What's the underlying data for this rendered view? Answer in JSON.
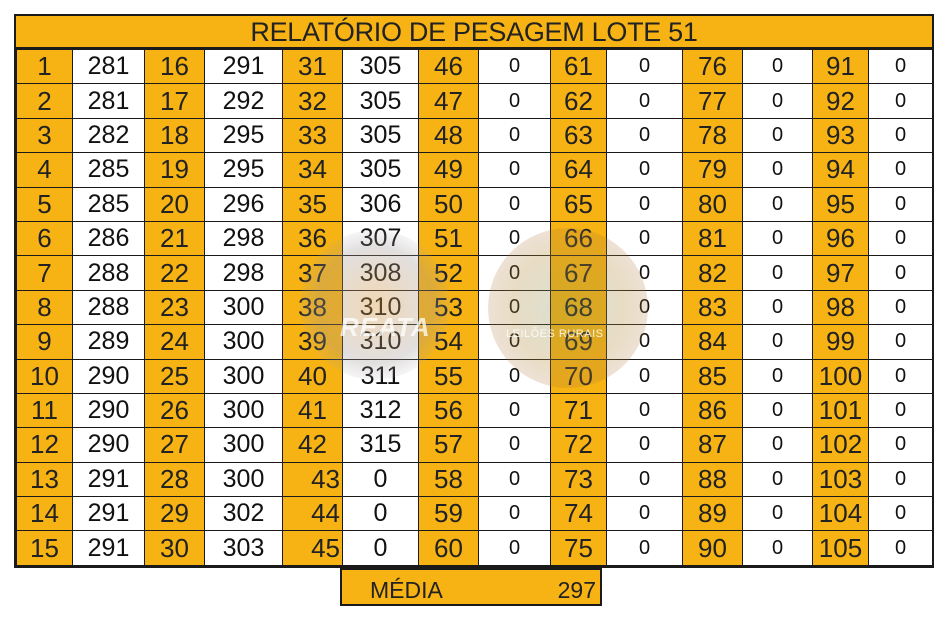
{
  "report": {
    "title": "RELATÓRIO DE PESAGEM LOTE  51",
    "columns": [
      {
        "numbers": [
          "1",
          "2",
          "3",
          "4",
          "5",
          "6",
          "7",
          "8",
          "9",
          "10",
          "11",
          "12",
          "13",
          "14",
          "15"
        ],
        "weights": [
          "281",
          "281",
          "282",
          "285",
          "285",
          "286",
          "288",
          "288",
          "289",
          "290",
          "290",
          "290",
          "291",
          "291",
          "291"
        ]
      },
      {
        "numbers": [
          "16",
          "17",
          "18",
          "19",
          "20",
          "21",
          "22",
          "23",
          "24",
          "25",
          "26",
          "27",
          "28",
          "29",
          "30"
        ],
        "weights": [
          "291",
          "292",
          "295",
          "295",
          "296",
          "298",
          "298",
          "300",
          "300",
          "300",
          "300",
          "300",
          "300",
          "302",
          "303"
        ]
      },
      {
        "numbers": [
          "31",
          "32",
          "33",
          "34",
          "35",
          "36",
          "37",
          "38",
          "39",
          "40",
          "41",
          "42",
          "43",
          "44",
          "45"
        ],
        "weights": [
          "305",
          "305",
          "305",
          "305",
          "306",
          "307",
          "308",
          "310",
          "310",
          "311",
          "312",
          "315",
          "0",
          "0",
          "0"
        ]
      },
      {
        "numbers": [
          "46",
          "47",
          "48",
          "49",
          "50",
          "51",
          "52",
          "53",
          "54",
          "55",
          "56",
          "57",
          "58",
          "59",
          "60"
        ],
        "weights": [
          "0",
          "0",
          "0",
          "0",
          "0",
          "0",
          "0",
          "0",
          "0",
          "0",
          "0",
          "0",
          "0",
          "0",
          "0"
        ]
      },
      {
        "numbers": [
          "61",
          "62",
          "63",
          "64",
          "65",
          "66",
          "67",
          "68",
          "69",
          "70",
          "71",
          "72",
          "73",
          "74",
          "75"
        ],
        "weights": [
          "0",
          "0",
          "0",
          "0",
          "0",
          "0",
          "0",
          "0",
          "0",
          "0",
          "0",
          "0",
          "0",
          "0",
          "0"
        ]
      },
      {
        "numbers": [
          "76",
          "77",
          "78",
          "79",
          "80",
          "81",
          "82",
          "83",
          "84",
          "85",
          "86",
          "87",
          "88",
          "89",
          "90"
        ],
        "weights": [
          "0",
          "0",
          "0",
          "0",
          "0",
          "0",
          "0",
          "0",
          "0",
          "0",
          "0",
          "0",
          "0",
          "0",
          "0"
        ]
      },
      {
        "numbers": [
          "91",
          "92",
          "93",
          "94",
          "95",
          "96",
          "97",
          "98",
          "99",
          "100",
          "101",
          "102",
          "103",
          "104",
          "105"
        ],
        "weights": [
          "0",
          "0",
          "0",
          "0",
          "0",
          "0",
          "0",
          "0",
          "0",
          "0",
          "0",
          "0",
          "0",
          "0",
          "0"
        ]
      }
    ],
    "average": {
      "label": "MÉDIA",
      "value": "297"
    }
  },
  "watermarks": {
    "left_text": "REATA",
    "right_text": "LEILÕES RURAIS"
  },
  "colors": {
    "header_fill": "#f6b313",
    "cell_fill": "#ffffff",
    "border": "#1a1a1a"
  }
}
